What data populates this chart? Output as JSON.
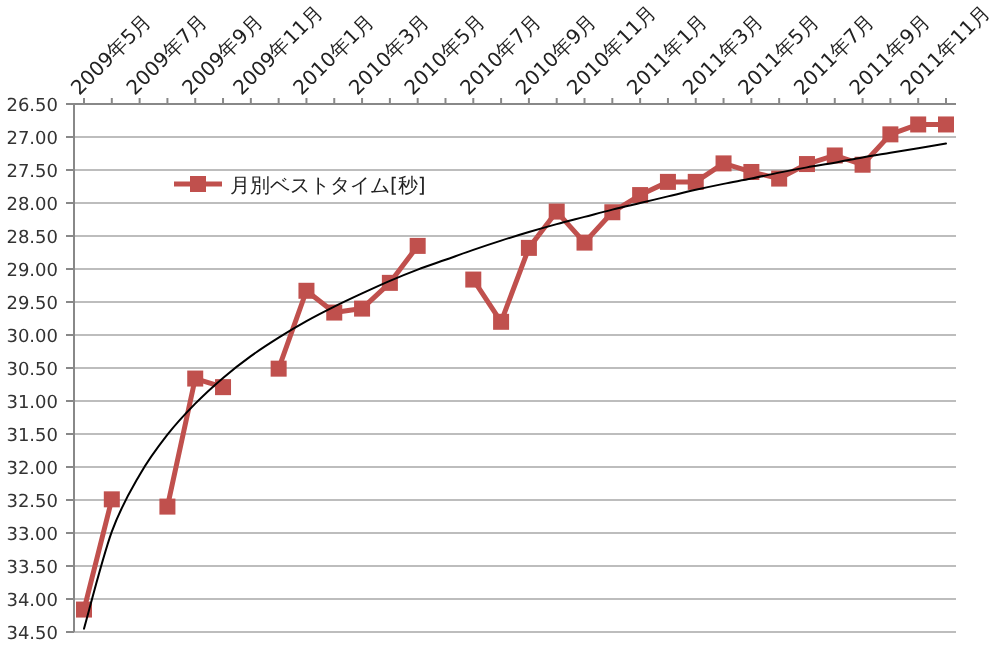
{
  "chart_data": {
    "type": "line",
    "categories": [
      null,
      "2009年5月",
      null,
      "2009年7月",
      null,
      "2009年9月",
      null,
      "2009年11月",
      null,
      "2010年1月",
      null,
      "2010年3月",
      null,
      "2010年5月",
      null,
      "2010年7月",
      null,
      "2010年9月",
      null,
      "2010年11月",
      null,
      "2011年1月",
      null,
      "2011年3月",
      null,
      "2011年5月",
      null,
      "2011年7月",
      null,
      "2011年9月",
      null,
      "2011年11月"
    ],
    "series": [
      {
        "name": "月別ベストタイム[秒]",
        "color": "#c0504d",
        "marker": "square",
        "values": [
          34.16,
          32.49,
          null,
          32.6,
          30.66,
          30.79,
          null,
          30.51,
          29.33,
          29.66,
          29.6,
          29.21,
          28.65,
          null,
          29.16,
          29.8,
          28.68,
          28.13,
          28.6,
          28.14,
          27.88,
          27.68,
          27.68,
          27.4,
          27.53,
          27.63,
          27.41,
          27.28,
          27.42,
          26.96,
          26.81,
          26.81
        ]
      },
      {
        "color": "#000000",
        "marker": "none",
        "values": [
          34.45,
          32.98,
          32.12,
          31.51,
          31.04,
          30.65,
          30.32,
          30.04,
          29.79,
          29.57,
          29.37,
          29.18,
          29.01,
          28.86,
          28.71,
          28.57,
          28.44,
          28.32,
          28.21,
          28.1,
          28.0,
          27.9,
          27.8,
          27.71,
          27.63,
          27.54,
          27.46,
          27.39,
          27.31,
          27.24,
          27.17,
          27.1
        ]
      }
    ],
    "ylim": [
      34.5,
      26.5
    ],
    "yticks": [
      {
        "value": 26.5,
        "label": "26.50"
      },
      {
        "value": 27,
        "label": "27.00"
      },
      {
        "value": 27.5,
        "label": "27.50"
      },
      {
        "value": 28,
        "label": "28.00"
      },
      {
        "value": 28.5,
        "label": "28.50"
      },
      {
        "value": 29,
        "label": "29.00"
      },
      {
        "value": 29.5,
        "label": "29.50"
      },
      {
        "value": 30,
        "label": "30.00"
      },
      {
        "value": 30.5,
        "label": "30.50"
      },
      {
        "value": 31,
        "label": "31.00"
      },
      {
        "value": 31.5,
        "label": "31.50"
      },
      {
        "value": 32,
        "label": "32.00"
      },
      {
        "value": 32.5,
        "label": "32.50"
      },
      {
        "value": 33,
        "label": "33.00"
      },
      {
        "value": 33.5,
        "label": "33.50"
      },
      {
        "value": 34,
        "label": "34.00"
      },
      {
        "value": 34.5,
        "label": "34.50"
      }
    ],
    "grid": "y",
    "legend": "top left"
  }
}
